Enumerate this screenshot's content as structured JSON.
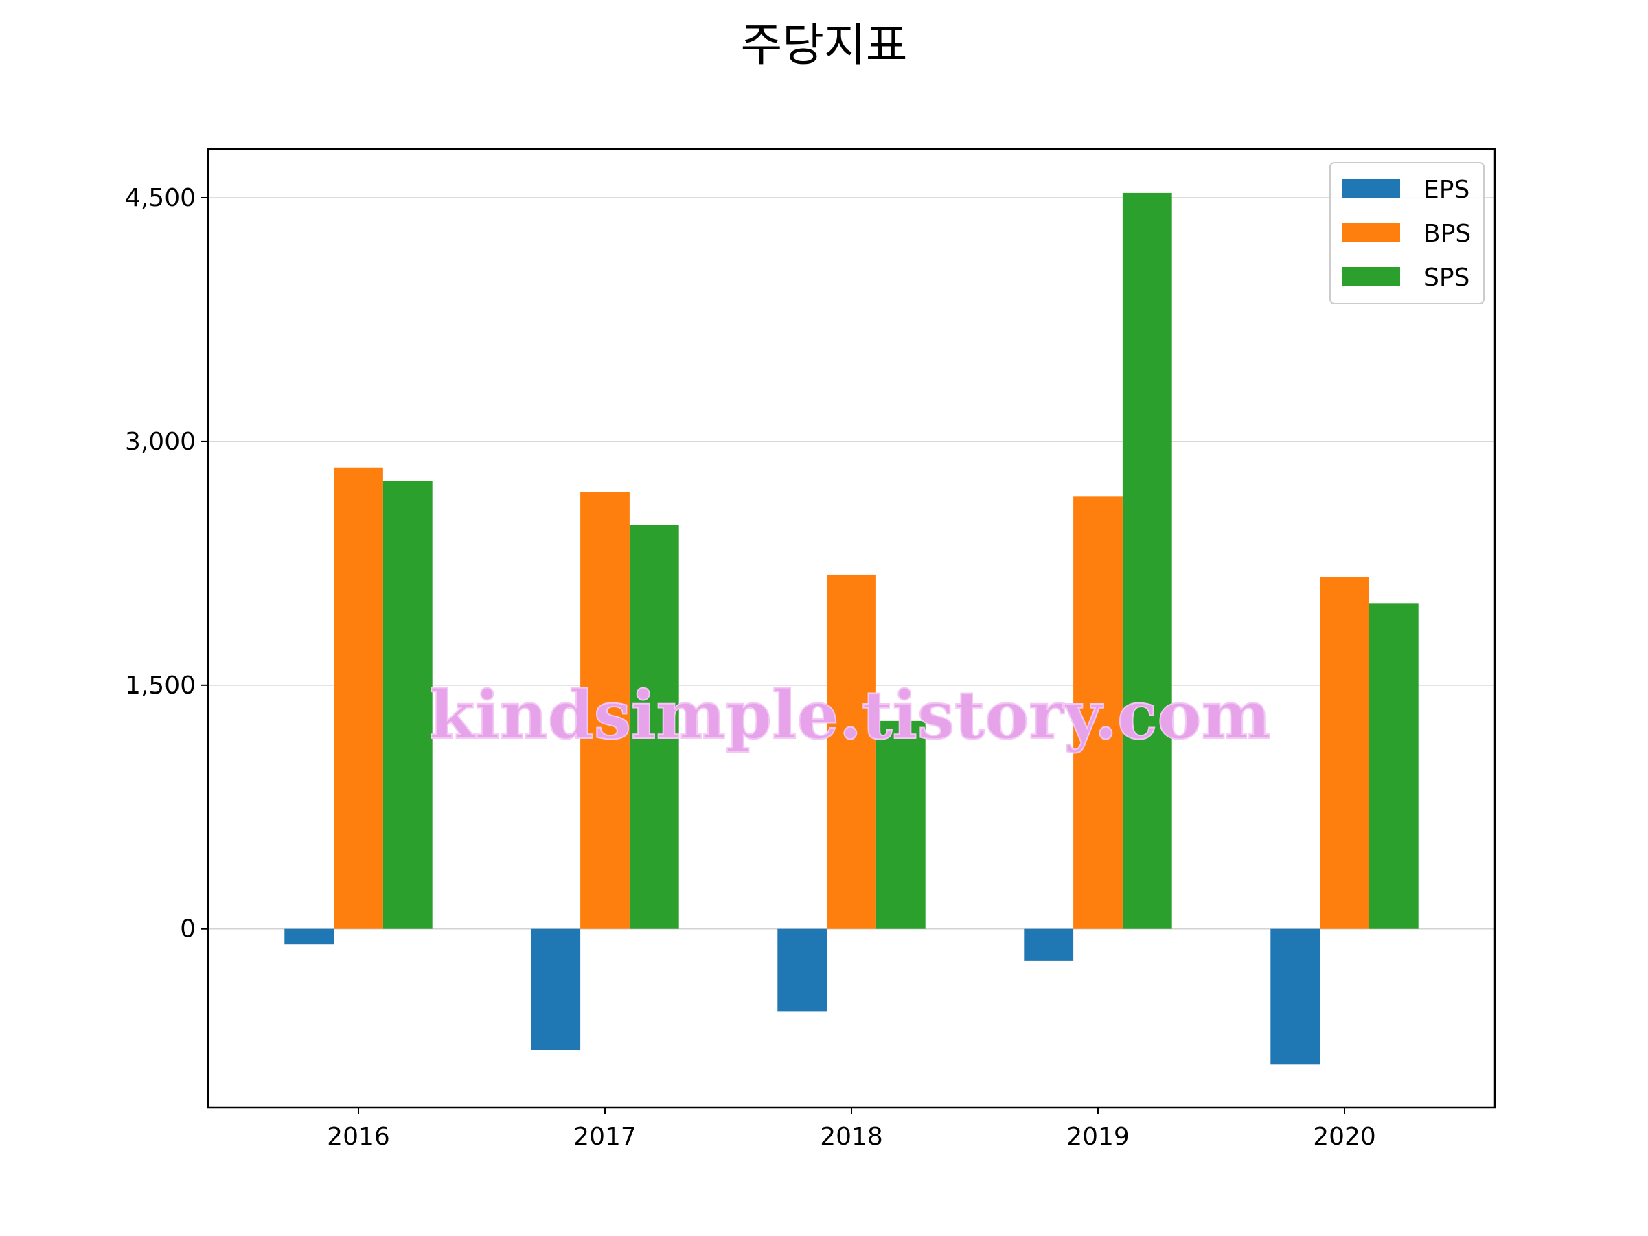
{
  "watermark": "kindsimple.tistory.com",
  "chart_data": {
    "type": "bar",
    "title": "주당지표",
    "xlabel": "",
    "ylabel": "",
    "categories": [
      "2016",
      "2017",
      "2018",
      "2019",
      "2020"
    ],
    "series": [
      {
        "name": "EPS",
        "color": "#1f77b4",
        "values": [
          -95,
          -745,
          -510,
          -195,
          -835
        ]
      },
      {
        "name": "BPS",
        "color": "#ff7f0e",
        "values": [
          2840,
          2690,
          2180,
          2660,
          2165
        ]
      },
      {
        "name": "SPS",
        "color": "#2ca02c",
        "values": [
          2755,
          2485,
          1280,
          4530,
          2005
        ]
      }
    ],
    "ylim": [
      -1100,
      4800
    ],
    "yticks": [
      0,
      1500,
      3000,
      4500
    ],
    "ytick_labels": [
      "0",
      "1,500",
      "3,000",
      "4,500"
    ],
    "grid": "horizontal",
    "legend": "top-right"
  }
}
